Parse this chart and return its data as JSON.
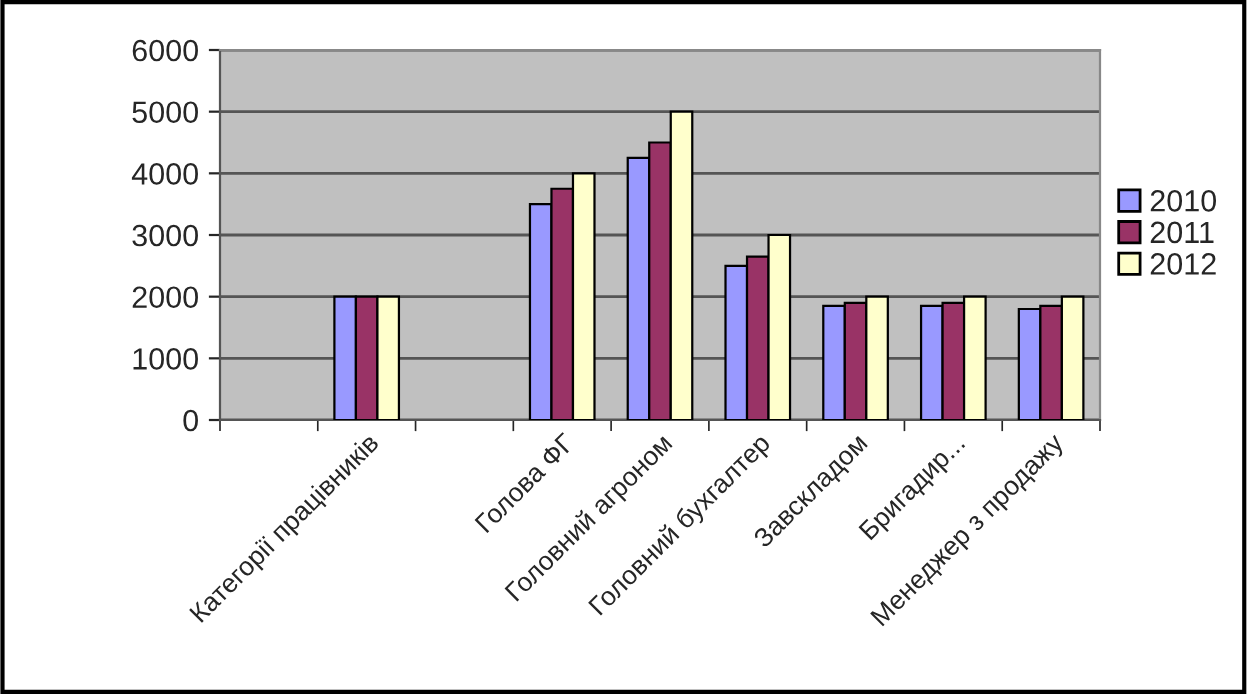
{
  "chart_data": {
    "type": "bar",
    "categories": [
      null,
      "Категорії працівників",
      null,
      "Голова ФГ",
      "Головний агроном",
      "Головний бухгалтер",
      "Завскладом",
      "Бригадир...",
      "Менеджер з продажу"
    ],
    "series": [
      {
        "name": "2010",
        "color": "#9999ff",
        "values": [
          null,
          2000,
          null,
          3500,
          4250,
          2500,
          1850,
          1850,
          1800
        ]
      },
      {
        "name": "2011",
        "color": "#993366",
        "values": [
          null,
          2000,
          null,
          3750,
          4500,
          2650,
          1900,
          1900,
          1850
        ]
      },
      {
        "name": "2012",
        "color": "#ffffcc",
        "values": [
          null,
          2000,
          null,
          4000,
          5000,
          3000,
          2000,
          2000,
          2000
        ]
      }
    ],
    "ylim": [
      0,
      6000
    ],
    "yticks": [
      0,
      1000,
      2000,
      3000,
      4000,
      5000,
      6000
    ],
    "grid": "y",
    "legend": "right"
  }
}
